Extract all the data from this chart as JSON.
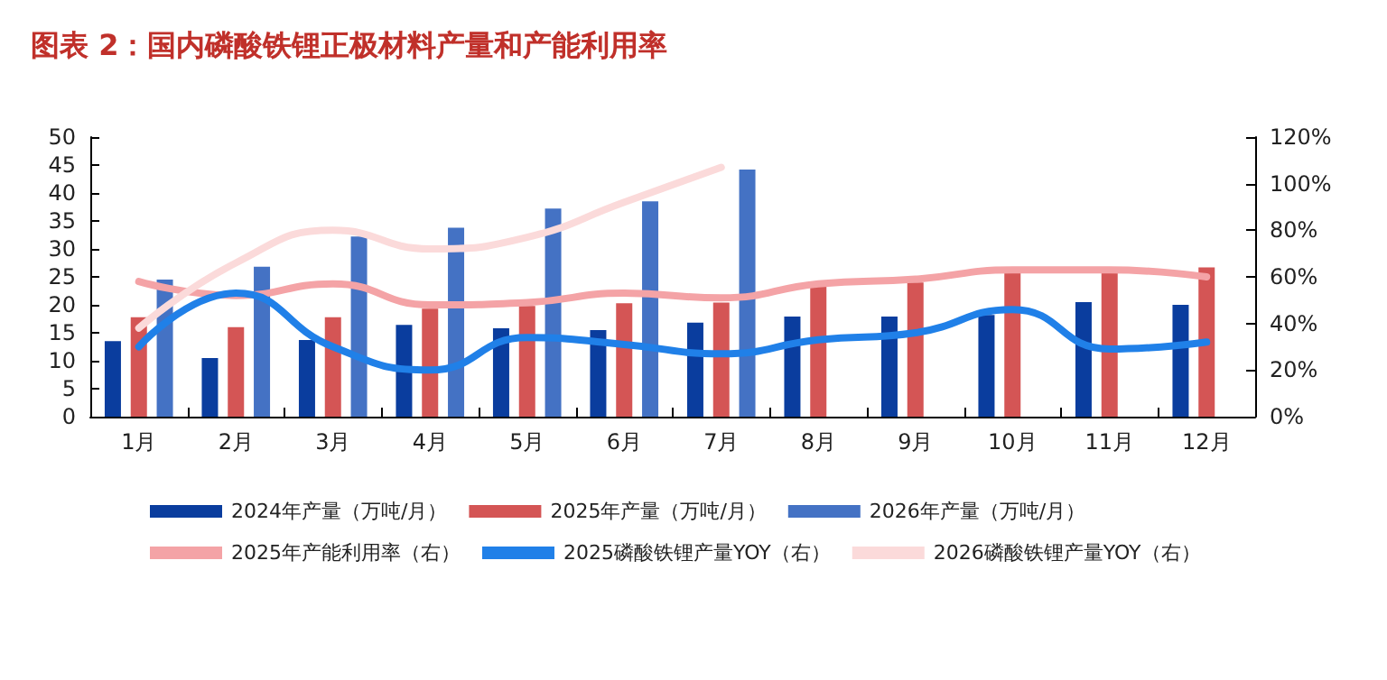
{
  "chart_data": {
    "type": "bar",
    "title": "图表 2：国内磷酸铁锂正极材料产量和产能利用率",
    "categories": [
      "1月",
      "2月",
      "3月",
      "4月",
      "5月",
      "6月",
      "7月",
      "8月",
      "9月",
      "10月",
      "11月",
      "12月"
    ],
    "series": [
      {
        "name": "2024年产量（万吨/月）",
        "color": "#0a3d9e",
        "values": [
          13.5,
          10.5,
          13.7,
          16.4,
          15.8,
          15.5,
          16.8,
          17.9,
          17.9,
          18.2,
          20.5,
          20.0
        ]
      },
      {
        "name": "2025年产量（万吨/月）",
        "color": "#d45555",
        "values": [
          17.8,
          16.0,
          17.8,
          19.3,
          19.8,
          20.3,
          20.4,
          23.4,
          24.0,
          26.2,
          25.7,
          26.7
        ]
      },
      {
        "name": "2026年产量（万吨/月）",
        "color": "#4472c4",
        "values": [
          24.5,
          26.8,
          32.2,
          33.8,
          37.2,
          38.5,
          44.2,
          null,
          null,
          null,
          null,
          null
        ]
      },
      {
        "name": "2025年产能利用率（右）",
        "type": "line",
        "axis": "y2",
        "color": "#f4a3a6",
        "values": [
          58,
          52,
          57,
          48,
          49,
          53,
          51,
          57,
          59,
          63,
          63,
          60
        ]
      },
      {
        "name": "2025磷酸铁锂产量YOY（右）",
        "type": "line",
        "axis": "y2",
        "color": "#2080e8",
        "values": [
          30,
          53,
          30,
          20,
          34,
          31,
          27,
          33,
          36,
          46,
          29,
          32
        ]
      },
      {
        "name": "2026磷酸铁锂产量YOY（右）",
        "type": "line",
        "axis": "y2",
        "color": "#fbdada",
        "values": [
          38,
          66,
          80,
          72,
          77,
          92,
          107,
          null,
          null,
          null,
          null,
          null
        ]
      }
    ],
    "ylim": [
      0,
      50
    ],
    "yticks": [
      0,
      5,
      10,
      15,
      20,
      25,
      30,
      35,
      40,
      45,
      50
    ],
    "y2lim": [
      0,
      120
    ],
    "y2ticks": [
      {
        "value": 0,
        "label": "0%"
      },
      {
        "value": 20,
        "label": "20%"
      },
      {
        "value": 40,
        "label": "40%"
      },
      {
        "value": 60,
        "label": "60%"
      },
      {
        "value": 80,
        "label": "80%"
      },
      {
        "value": 100,
        "label": "100%"
      },
      {
        "value": 120,
        "label": "120%"
      }
    ],
    "legend": "bottom",
    "marker": "none",
    "line_style": "solid"
  }
}
